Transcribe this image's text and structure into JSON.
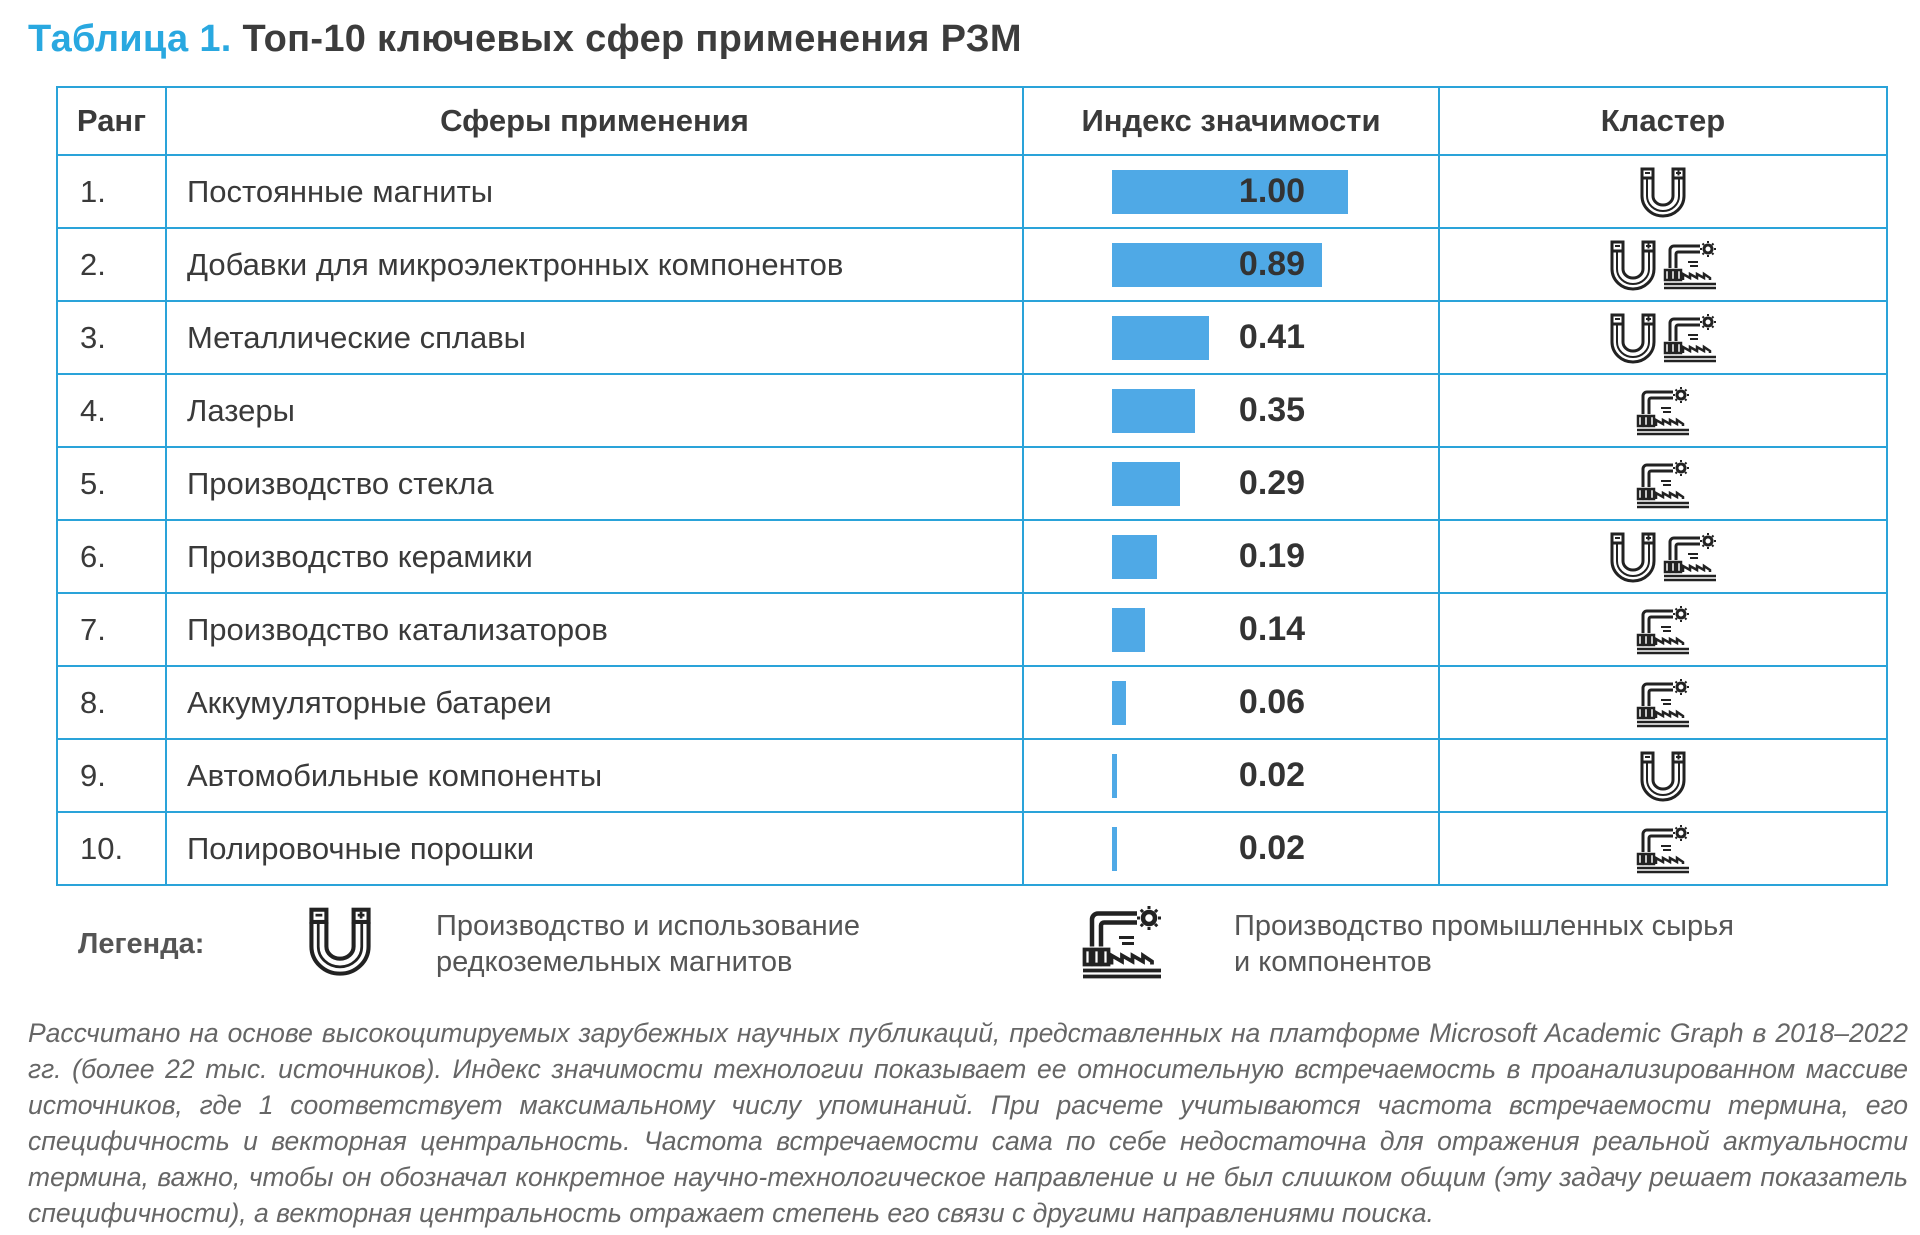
{
  "title": {
    "number": "Таблица 1.",
    "text": "Топ-10 ключевых сфер применения РЗМ"
  },
  "table": {
    "headers": {
      "rank": "Ранг",
      "sphere": "Сферы применения",
      "index": "Индекс значимости",
      "cluster": "Кластер"
    },
    "rows": [
      {
        "rank": "1.",
        "name": "Постоянные магниты",
        "index": "1.00",
        "value": 1.0,
        "clusters": [
          "magnet-icon"
        ]
      },
      {
        "rank": "2.",
        "name": "Добавки для микроэлектронных компонентов",
        "index": "0.89",
        "value": 0.89,
        "clusters": [
          "magnet-icon",
          "factory-icon"
        ]
      },
      {
        "rank": "3.",
        "name": "Металлические сплавы",
        "index": "0.41",
        "value": 0.41,
        "clusters": [
          "magnet-icon",
          "factory-icon"
        ]
      },
      {
        "rank": "4.",
        "name": "Лазеры",
        "index": "0.35",
        "value": 0.35,
        "clusters": [
          "factory-icon"
        ]
      },
      {
        "rank": "5.",
        "name": "Производство стекла",
        "index": "0.29",
        "value": 0.29,
        "clusters": [
          "factory-icon"
        ]
      },
      {
        "rank": "6.",
        "name": "Производство керамики",
        "index": "0.19",
        "value": 0.19,
        "clusters": [
          "magnet-icon",
          "factory-icon"
        ]
      },
      {
        "rank": "7.",
        "name": "Производство катализаторов",
        "index": "0.14",
        "value": 0.14,
        "clusters": [
          "factory-icon"
        ]
      },
      {
        "rank": "8.",
        "name": "Аккумуляторные батареи",
        "index": "0.06",
        "value": 0.06,
        "clusters": [
          "factory-icon"
        ]
      },
      {
        "rank": "9.",
        "name": "Автомобильные компоненты",
        "index": "0.02",
        "value": 0.02,
        "clusters": [
          "magnet-icon"
        ]
      },
      {
        "rank": "10.",
        "name": "Полировочные порошки",
        "index": "0.02",
        "value": 0.02,
        "clusters": [
          "factory-icon"
        ]
      }
    ]
  },
  "legend": {
    "label": "Легенда:",
    "magnet_icon": "magnet-icon",
    "magnet_text_line1": "Производство и использование",
    "magnet_text_line2": "редкоземельных магнитов",
    "factory_icon": "factory-icon",
    "factory_text_line1": "Производство промышленных сырья",
    "factory_text_line2": "и компонентов"
  },
  "colors": {
    "accent": "#29a8e0",
    "border": "#2aa3d9",
    "bar": "#4fa9e6"
  },
  "note": "Рассчитано на основе высокоцитируемых зарубежных научных публикаций, представленных на платформе Microsoft Academic Graph в 2018–2022 гг. (более 22 тыс. источников). Индекс значимости технологии показывает ее относительную встречаемость в проанализированном массиве источников, где 1 соответствует максимальному числу упоминаний. При расчете учитываются частота встречаемости термина, его специфичность и векторная центральность. Частота встречаемости сама по себе недостаточна для отражения реальной актуальности термина, важно, чтобы он обозначал конкретное научно-технологическое направление и не был слишком общим (эту задачу решает показатель специфичности), а векторная центральность отражает степень его связи с другими направлениями поиска."
}
